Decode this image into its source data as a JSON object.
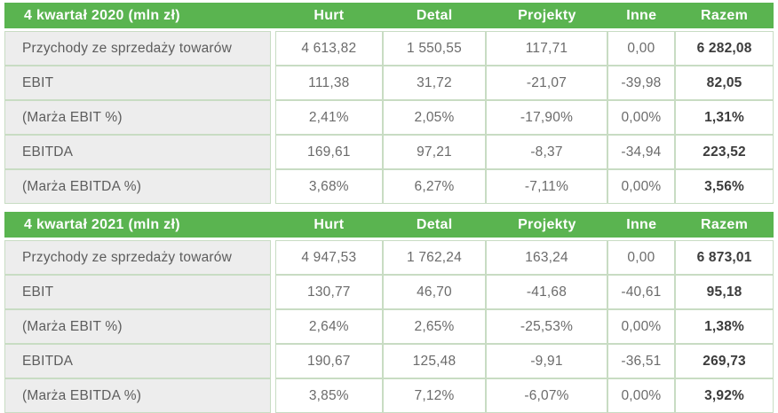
{
  "colors": {
    "header_bg": "#5ab450",
    "header_text": "#ffffff",
    "grid_line": "#c8dcc3",
    "label_cell_bg": "#ededed",
    "value_cell_bg": "#ffffff",
    "label_text": "#5d5d5d",
    "value_text": "#6b6b6b",
    "total_text": "#3c3c3c"
  },
  "chart_data": [
    {
      "type": "table",
      "title": "4 kwartał 2020 (mln zł)",
      "columns": [
        "Hurt",
        "Detal",
        "Projekty",
        "Inne",
        "Razem"
      ],
      "rows": [
        {
          "label": "Przychody ze sprzedaży towarów",
          "values": [
            "4 613,82",
            "1 550,55",
            "117,71",
            "0,00",
            "6 282,08"
          ]
        },
        {
          "label": "EBIT",
          "values": [
            "111,38",
            "31,72",
            "-21,07",
            "-39,98",
            "82,05"
          ]
        },
        {
          "label": "(Marża EBIT %)",
          "values": [
            "2,41%",
            "2,05%",
            "-17,90%",
            "0,00%",
            "1,31%"
          ]
        },
        {
          "label": "EBITDA",
          "values": [
            "169,61",
            "97,21",
            "-8,37",
            "-34,94",
            "223,52"
          ]
        },
        {
          "label": "(Marża EBITDA %)",
          "values": [
            "3,68%",
            "6,27%",
            "-7,11%",
            "0,00%",
            "3,56%"
          ]
        }
      ]
    },
    {
      "type": "table",
      "title": "4 kwartał 2021 (mln zł)",
      "columns": [
        "Hurt",
        "Detal",
        "Projekty",
        "Inne",
        "Razem"
      ],
      "rows": [
        {
          "label": "Przychody ze sprzedaży towarów",
          "values": [
            "4 947,53",
            "1 762,24",
            "163,24",
            "0,00",
            "6 873,01"
          ]
        },
        {
          "label": "EBIT",
          "values": [
            "130,77",
            "46,70",
            "-41,68",
            "-40,61",
            "95,18"
          ]
        },
        {
          "label": "(Marża EBIT %)",
          "values": [
            "2,64%",
            "2,65%",
            "-25,53%",
            "0,00%",
            "1,38%"
          ]
        },
        {
          "label": "EBITDA",
          "values": [
            "190,67",
            "125,48",
            "-9,91",
            "-36,51",
            "269,73"
          ]
        },
        {
          "label": "(Marża EBITDA %)",
          "values": [
            "3,85%",
            "7,12%",
            "-6,07%",
            "0,00%",
            "3,92%"
          ]
        }
      ]
    }
  ]
}
